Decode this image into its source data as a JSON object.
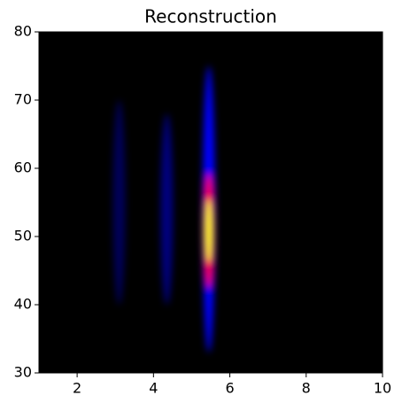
{
  "chart_data": {
    "type": "heatmap",
    "title": "Reconstruction",
    "xlim": [
      1,
      10
    ],
    "ylim": [
      30,
      80
    ],
    "xticks": [
      2,
      4,
      6,
      8,
      10
    ],
    "yticks": [
      30,
      40,
      50,
      60,
      70,
      80
    ],
    "background": "#000000",
    "colormap": [
      "#0000ff",
      "#ff0000",
      "#ffff00"
    ],
    "streaks": {
      "x": [
        3.1,
        4.35,
        5.45
      ],
      "ymin": [
        40,
        40,
        33
      ],
      "ymax": [
        70,
        68,
        75
      ],
      "intensity": [
        0.35,
        0.5,
        1
      ]
    }
  }
}
